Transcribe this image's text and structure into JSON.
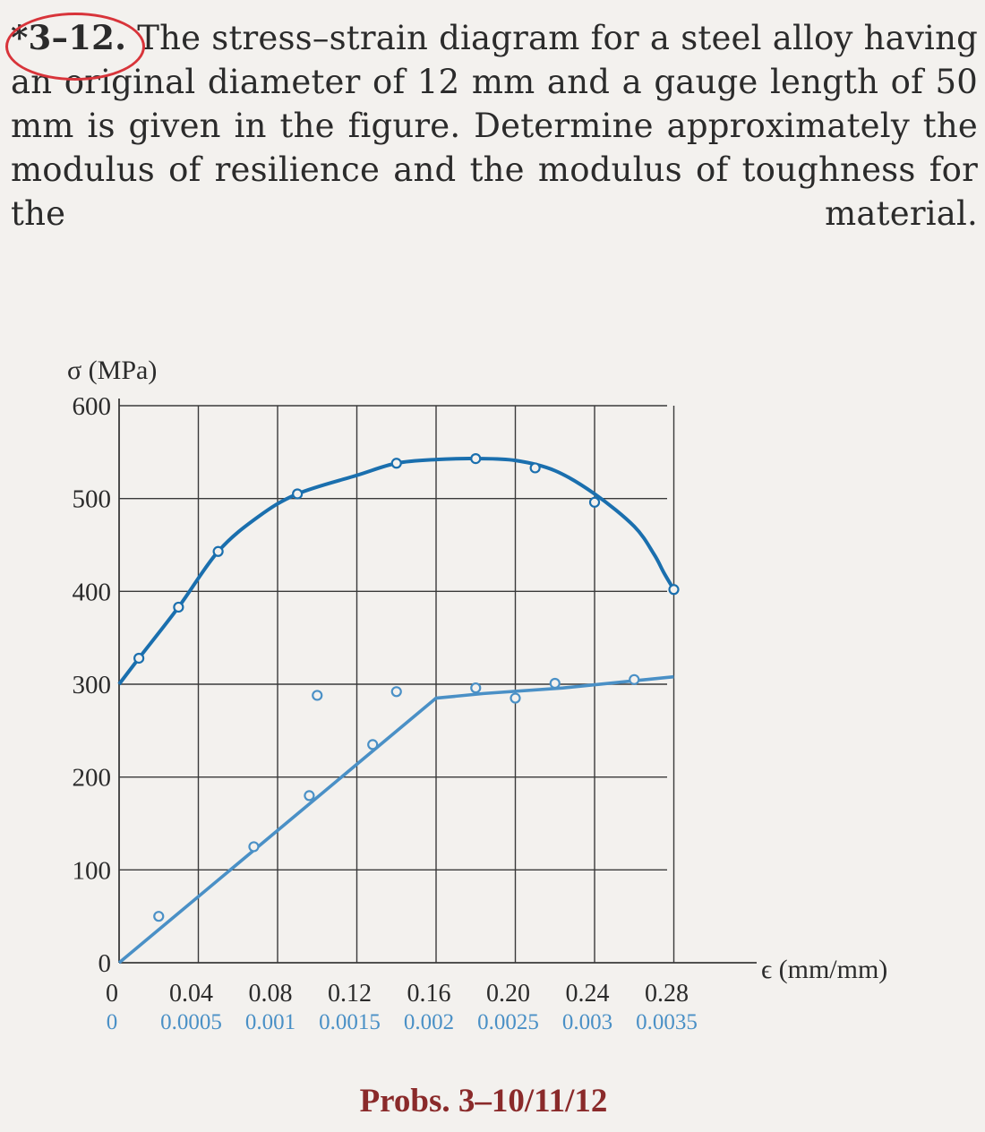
{
  "problem": {
    "number": "*3–12.",
    "text": "The stress–strain diagram for a steel alloy having an original diameter of 12 mm and a gauge length of 50 mm is given in the figure. Determine approximately the modulus of resilience and the modulus of toughness for the material."
  },
  "caption": "Probs. 3–10/11/12",
  "colors": {
    "upper_curve": "#1a6fae",
    "lower_curve": "#4a90c6",
    "grid": "#3a3a3a",
    "circle_mark": "#d8343a"
  },
  "chart_data": {
    "type": "line",
    "ylabel": "σ (MPa)",
    "xlabel": "ϵ (mm/mm)",
    "ylim": [
      0,
      600
    ],
    "y_ticks": [
      "0",
      "100",
      "200",
      "300",
      "400",
      "500",
      "600"
    ],
    "x_upper_ticks": [
      "0",
      "0.04",
      "0.08",
      "0.12",
      "0.16",
      "0.20",
      "0.24",
      "0.28"
    ],
    "x_lower_ticks": [
      "0",
      "0.0005",
      "0.001",
      "0.0015",
      "0.002",
      "0.0025",
      "0.003",
      "0.0035"
    ],
    "grid": true,
    "series": [
      {
        "x_scale": "upper",
        "x": [
          0.0,
          0.01,
          0.03,
          0.05,
          0.07,
          0.09,
          0.12,
          0.14,
          0.16,
          0.18,
          0.2,
          0.22,
          0.24,
          0.26,
          0.27,
          0.275,
          0.28
        ],
        "y": [
          300,
          328,
          383,
          443,
          480,
          505,
          525,
          538,
          542,
          543,
          541,
          530,
          505,
          470,
          440,
          420,
          402
        ],
        "markers_x": [
          0.01,
          0.03,
          0.05,
          0.09,
          0.14,
          0.18,
          0.21,
          0.24,
          0.28
        ],
        "markers_y": [
          328,
          383,
          443,
          505,
          538,
          543,
          533,
          496,
          402
        ]
      },
      {
        "x_scale": "lower",
        "x": [
          0.0,
          0.002,
          0.0023,
          0.0028,
          0.0035
        ],
        "y": [
          0,
          285,
          290,
          296,
          308
        ],
        "markers_x": [
          0.00025,
          0.00085,
          0.0012,
          0.0016,
          0.0025
        ],
        "markers_y": [
          50,
          125,
          180,
          235,
          285
        ],
        "markers_upper_x": [
          0.1,
          0.14,
          0.18,
          0.22,
          0.26
        ],
        "markers_upper_y": [
          288,
          292,
          296,
          301,
          305
        ]
      }
    ]
  }
}
